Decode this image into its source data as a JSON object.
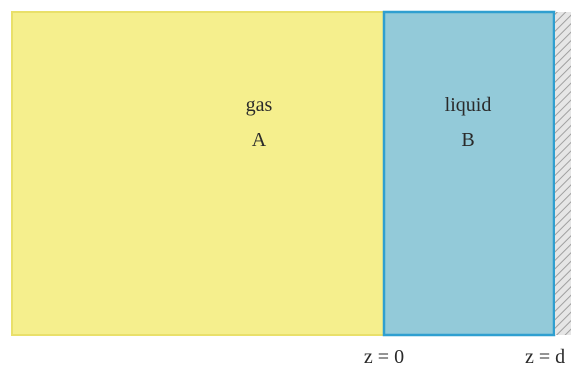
{
  "gas_region": {
    "name": "gas",
    "species": "A",
    "color": "#f5ef8d",
    "border_color": "#e9e06a"
  },
  "liquid_region": {
    "name": "liquid",
    "species": "B",
    "color": "#93cad9",
    "border_color": "#2f9fd0"
  },
  "wall": {
    "fill": "#e6e6e6",
    "hatch_color": "#a0a0a0"
  },
  "axis_labels": {
    "interface": "z = 0",
    "wall": "z = d"
  }
}
